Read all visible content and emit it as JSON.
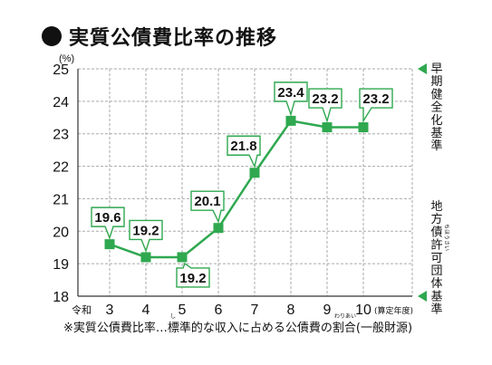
{
  "title": "実質公債費比率の推移",
  "chart_data": {
    "type": "line",
    "unit": "(%)",
    "x_era_label": "令和",
    "x_suffix": "(算定年度)",
    "categories": [
      "3",
      "4",
      "5",
      "6",
      "7",
      "8",
      "9",
      "10"
    ],
    "values": [
      19.6,
      19.2,
      19.2,
      20.1,
      21.8,
      23.4,
      23.2,
      23.2
    ],
    "data_labels": [
      "19.6",
      "19.2",
      "19.2",
      "20.1",
      "21.8",
      "23.4",
      "23.2",
      "23.2"
    ],
    "y_ticks": [
      "18",
      "19",
      "20",
      "21",
      "22",
      "23",
      "24",
      "25"
    ],
    "ylim": [
      18,
      25
    ],
    "grid": true,
    "thresholds": [
      {
        "value": 25,
        "label": "早期健全化基準"
      },
      {
        "value": 18,
        "label": "地方債許可団体基準",
        "ruby": "ちほうさい"
      }
    ],
    "colors": {
      "line": "#2fa84f",
      "marker": "#2fa84f",
      "label_border": "#2fa84f",
      "grid": "#aaaaaa",
      "axis": "#333333"
    }
  },
  "footnote": {
    "text": "※実質公債費比率…標準的な収入に占める公債費の割合(一般財源)",
    "ruby_shi": "し",
    "ruby_wariai": "わりあい"
  }
}
